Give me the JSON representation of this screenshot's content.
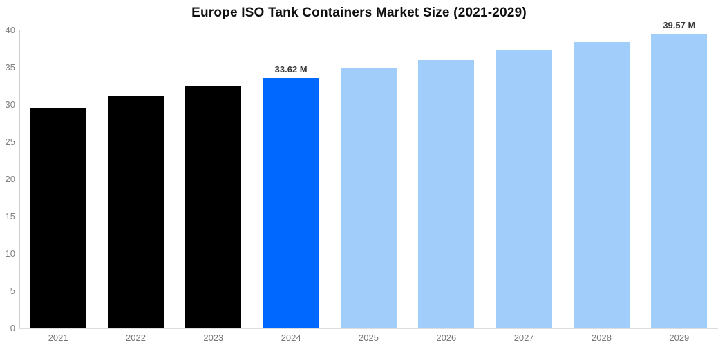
{
  "chart_data": {
    "type": "bar",
    "title": "Europe ISO Tank Containers Market Size (2021-2029)",
    "categories": [
      "2021",
      "2022",
      "2023",
      "2024",
      "2025",
      "2026",
      "2027",
      "2028",
      "2029"
    ],
    "values": [
      29.5,
      31.2,
      32.5,
      33.62,
      34.9,
      36.0,
      37.3,
      38.4,
      39.57
    ],
    "data_labels": [
      "",
      "",
      "",
      "33.62 M",
      "",
      "",
      "",
      "",
      "39.57 M"
    ],
    "bar_colors": [
      "#000000",
      "#000000",
      "#000000",
      "#0067ff",
      "#a1cdfb",
      "#a1cdfb",
      "#a1cdfb",
      "#a1cdfb",
      "#a1cdfb"
    ],
    "xlabel": "",
    "ylabel": "",
    "ylim": [
      0,
      40
    ],
    "yticks": [
      0,
      5,
      10,
      15,
      20,
      25,
      30,
      35,
      40
    ],
    "grid": false,
    "legend": false,
    "value_unit": "M",
    "colors": {
      "title": "#0f0f0f",
      "tick_label": "#7f7f7f",
      "x_tick_label": "#767676",
      "data_label": "#3a3a3a",
      "y_axis_line": "#cccccc",
      "x_axis_line": "#dddddd",
      "background": "#ffffff"
    }
  }
}
